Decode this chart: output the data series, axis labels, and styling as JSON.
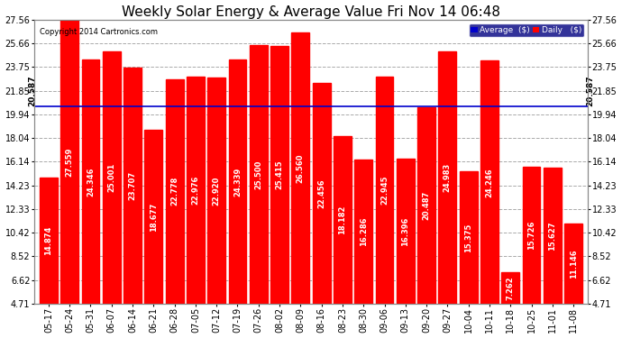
{
  "title": "Weekly Solar Energy & Average Value Fri Nov 14 06:48",
  "copyright": "Copyright 2014 Cartronics.com",
  "categories": [
    "05-17",
    "05-24",
    "05-31",
    "06-07",
    "06-14",
    "06-21",
    "06-28",
    "07-05",
    "07-12",
    "07-19",
    "07-26",
    "08-02",
    "08-09",
    "08-16",
    "08-23",
    "08-30",
    "09-06",
    "09-13",
    "09-20",
    "09-27",
    "10-04",
    "10-11",
    "10-18",
    "10-25",
    "11-01",
    "11-08"
  ],
  "values": [
    14.874,
    27.559,
    24.346,
    25.001,
    23.707,
    18.677,
    22.778,
    22.976,
    22.92,
    24.339,
    25.5,
    25.415,
    26.56,
    22.456,
    18.182,
    16.286,
    22.945,
    16.396,
    20.487,
    24.983,
    15.375,
    24.246,
    7.262,
    15.726,
    15.627,
    11.146
  ],
  "average": 20.587,
  "bar_color": "#ff0000",
  "average_line_color": "#0000cc",
  "background_color": "#ffffff",
  "grid_color": "#aaaaaa",
  "yticks": [
    4.71,
    6.62,
    8.52,
    10.42,
    12.33,
    14.23,
    16.14,
    18.04,
    19.94,
    21.85,
    23.75,
    25.66,
    27.56
  ],
  "ymin": 4.71,
  "ymax": 27.56,
  "title_fontsize": 11,
  "tick_fontsize": 7,
  "label_fontsize": 6,
  "avg_label": "20.587",
  "legend_avg_color": "#0000cc",
  "legend_daily_color": "#ff0000",
  "legend_avg_text": "Average  ($)",
  "legend_daily_text": "Daily   ($)"
}
